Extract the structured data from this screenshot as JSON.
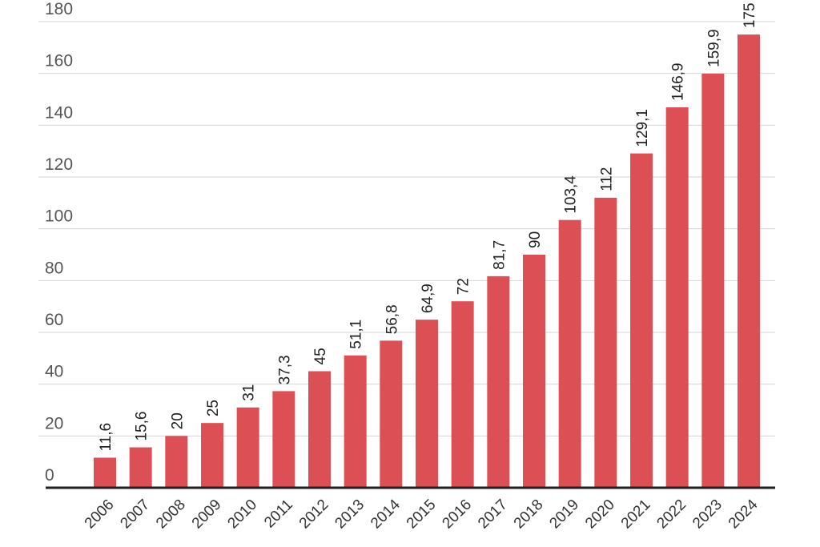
{
  "chart_data": {
    "type": "bar",
    "title": "",
    "xlabel": "",
    "ylabel": "",
    "categories": [
      "2006",
      "2007",
      "2008",
      "2009",
      "2010",
      "2011",
      "2012",
      "2013",
      "2014",
      "2015",
      "2016",
      "2017",
      "2018",
      "2019",
      "2020",
      "2021",
      "2022",
      "2023",
      "2024"
    ],
    "values": [
      11.6,
      15.6,
      20,
      25,
      31,
      37.3,
      45,
      51.1,
      56.8,
      64.9,
      72,
      81.7,
      90,
      103.4,
      112,
      129.1,
      146.9,
      159.9,
      175
    ],
    "data_labels": [
      "11,6",
      "15,6",
      "20",
      "25",
      "31",
      "37,3",
      "45",
      "51,1",
      "56,8",
      "64,9",
      "72",
      "81,7",
      "90",
      "103,4",
      "112",
      "129,1",
      "146,9",
      "159,9",
      "175"
    ],
    "ylim": [
      0,
      180
    ],
    "yticks": [
      "0",
      "20",
      "40",
      "60",
      "80",
      "100",
      "120",
      "140",
      "160",
      "180"
    ],
    "grid": true,
    "bar_color": "#dc4f55",
    "axis_color": "#222222"
  }
}
